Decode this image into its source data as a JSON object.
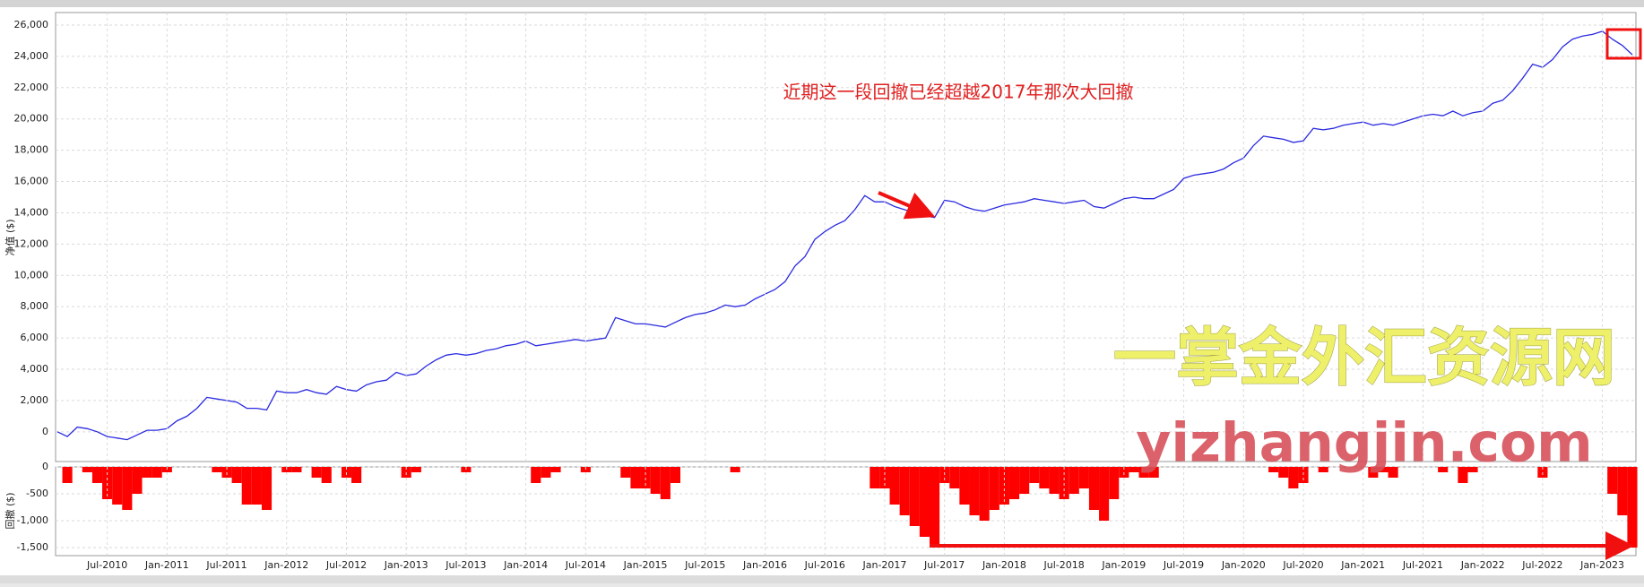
{
  "chart_data": [
    {
      "type": "line",
      "y_label": "净值 ($)",
      "annotation": "近期这一段回撤已经超越2017年那次大回撤",
      "watermark": "一掌金外汇资源网",
      "watermark_url": "yizhangjin.com",
      "x": [
        "Feb-2010",
        "Mar-2010",
        "Apr-2010",
        "May-2010",
        "Jun-2010",
        "Jul-2010",
        "Aug-2010",
        "Sep-2010",
        "Oct-2010",
        "Nov-2010",
        "Dec-2010",
        "Jan-2011",
        "Feb-2011",
        "Mar-2011",
        "Apr-2011",
        "May-2011",
        "Jun-2011",
        "Jul-2011",
        "Aug-2011",
        "Sep-2011",
        "Oct-2011",
        "Nov-2011",
        "Dec-2011",
        "Jan-2012",
        "Feb-2012",
        "Mar-2012",
        "Apr-2012",
        "May-2012",
        "Jun-2012",
        "Jul-2012",
        "Aug-2012",
        "Sep-2012",
        "Oct-2012",
        "Nov-2012",
        "Dec-2012",
        "Jan-2013",
        "Feb-2013",
        "Mar-2013",
        "Apr-2013",
        "May-2013",
        "Jun-2013",
        "Jul-2013",
        "Aug-2013",
        "Sep-2013",
        "Oct-2013",
        "Nov-2013",
        "Dec-2013",
        "Jan-2014",
        "Feb-2014",
        "Mar-2014",
        "Apr-2014",
        "May-2014",
        "Jun-2014",
        "Jul-2014",
        "Aug-2014",
        "Sep-2014",
        "Oct-2014",
        "Nov-2014",
        "Dec-2014",
        "Jan-2015",
        "Feb-2015",
        "Mar-2015",
        "Apr-2015",
        "May-2015",
        "Jun-2015",
        "Jul-2015",
        "Aug-2015",
        "Sep-2015",
        "Oct-2015",
        "Nov-2015",
        "Dec-2015",
        "Jan-2016",
        "Feb-2016",
        "Mar-2016",
        "Apr-2016",
        "May-2016",
        "Jun-2016",
        "Jul-2016",
        "Aug-2016",
        "Sep-2016",
        "Oct-2016",
        "Nov-2016",
        "Dec-2016",
        "Jan-2017",
        "Feb-2017",
        "Mar-2017",
        "Apr-2017",
        "May-2017",
        "Jun-2017",
        "Jul-2017",
        "Aug-2017",
        "Sep-2017",
        "Oct-2017",
        "Nov-2017",
        "Dec-2017",
        "Jan-2018",
        "Feb-2018",
        "Mar-2018",
        "Apr-2018",
        "May-2018",
        "Jun-2018",
        "Jul-2018",
        "Aug-2018",
        "Sep-2018",
        "Oct-2018",
        "Nov-2018",
        "Dec-2018",
        "Jan-2019",
        "Feb-2019",
        "Mar-2019",
        "Apr-2019",
        "May-2019",
        "Jun-2019",
        "Jul-2019",
        "Aug-2019",
        "Sep-2019",
        "Oct-2019",
        "Nov-2019",
        "Dec-2019",
        "Jan-2020",
        "Feb-2020",
        "Mar-2020",
        "Apr-2020",
        "May-2020",
        "Jun-2020",
        "Jul-2020",
        "Aug-2020",
        "Sep-2020",
        "Oct-2020",
        "Nov-2020",
        "Dec-2020",
        "Jan-2021",
        "Feb-2021",
        "Mar-2021",
        "Apr-2021",
        "May-2021",
        "Jun-2021",
        "Jul-2021",
        "Aug-2021",
        "Sep-2021",
        "Oct-2021",
        "Nov-2021",
        "Dec-2021",
        "Jan-2022",
        "Feb-2022",
        "Mar-2022",
        "Apr-2022",
        "May-2022",
        "Jun-2022",
        "Jul-2022",
        "Aug-2022",
        "Sep-2022",
        "Oct-2022",
        "Nov-2022",
        "Dec-2022",
        "Jan-2023",
        "Feb-2023",
        "Mar-2023",
        "Apr-2023"
      ],
      "series": [
        {
          "color": "#2b2be0",
          "values": [
            0,
            -300,
            300,
            200,
            0,
            -300,
            -400,
            -500,
            -200,
            100,
            100,
            200,
            700,
            1000,
            1500,
            2200,
            2100,
            2000,
            1900,
            1500,
            1500,
            1400,
            2600,
            2500,
            2500,
            2700,
            2500,
            2400,
            2900,
            2700,
            2600,
            3000,
            3200,
            3300,
            3800,
            3600,
            3700,
            4200,
            4600,
            4900,
            5000,
            4900,
            5000,
            5200,
            5300,
            5500,
            5600,
            5800,
            5500,
            5600,
            5700,
            5800,
            5900,
            5800,
            5900,
            6000,
            7300,
            7100,
            6900,
            6900,
            6800,
            6700,
            7000,
            7300,
            7500,
            7600,
            7800,
            8100,
            8000,
            8100,
            8500,
            8800,
            9100,
            9600,
            10600,
            11200,
            12300,
            12800,
            13200,
            13500,
            14200,
            15100,
            14700,
            14700,
            14400,
            14200,
            14000,
            13800,
            13700,
            14800,
            14700,
            14400,
            14200,
            14100,
            14300,
            14500,
            14600,
            14700,
            14900,
            14800,
            14700,
            14600,
            14700,
            14800,
            14400,
            14300,
            14600,
            14900,
            15000,
            14900,
            14900,
            15200,
            15500,
            16200,
            16400,
            16500,
            16600,
            16800,
            17200,
            17500,
            18300,
            18900,
            18800,
            18700,
            18500,
            18600,
            19400,
            19300,
            19400,
            19600,
            19700,
            19800,
            19600,
            19700,
            19600,
            19800,
            20000,
            20200,
            20300,
            20200,
            20500,
            20200,
            20400,
            20500,
            21000,
            21200,
            21800,
            22600,
            23500,
            23300,
            23800,
            24600,
            25100,
            25300,
            25400,
            25600,
            25100,
            24700,
            24100
          ]
        }
      ],
      "ylim": [
        -1900,
        26800
      ],
      "yticks": [
        0,
        {
          "value": 2000,
          "label": "2,000"
        },
        {
          "value": 4000,
          "label": "4,000"
        },
        {
          "value": 6000,
          "label": "6,000"
        },
        {
          "value": 8000,
          "label": "8,000"
        },
        {
          "value": 10000,
          "label": "10,000"
        },
        {
          "value": 12000,
          "label": "12,000"
        },
        {
          "value": 14000,
          "label": "14,000"
        },
        {
          "value": 16000,
          "label": "16,000"
        },
        {
          "value": 18000,
          "label": "18,000"
        },
        {
          "value": 20000,
          "label": "20,000"
        },
        {
          "value": 22000,
          "label": "22,000"
        },
        {
          "value": 24000,
          "label": "24,000"
        },
        {
          "value": 26000,
          "label": "26,000"
        }
      ],
      "grid": true
    },
    {
      "type": "bar",
      "y_label": "回撤 ($)",
      "xticks": [
        "Jul-2010",
        "Jan-2011",
        "Jul-2011",
        "Jan-2012",
        "Jul-2012",
        "Jan-2013",
        "Jul-2013",
        "Jan-2014",
        "Jul-2014",
        "Jan-2015",
        "Jul-2015",
        "Jan-2016",
        "Jul-2016",
        "Jan-2017",
        "Jul-2017",
        "Jan-2018",
        "Jul-2018",
        "Jan-2019",
        "Jul-2019",
        "Jan-2020",
        "Jul-2020",
        "Jan-2021",
        "Jul-2021",
        "Jan-2022",
        "Jul-2022",
        "Jan-2023"
      ],
      "color": "#ff0000",
      "values": [
        0,
        -300,
        0,
        -100,
        -300,
        -600,
        -700,
        -800,
        -500,
        -200,
        -200,
        -100,
        0,
        0,
        0,
        0,
        -100,
        -200,
        -300,
        -700,
        -700,
        -800,
        0,
        -100,
        -100,
        0,
        -200,
        -300,
        0,
        -200,
        -300,
        0,
        0,
        0,
        0,
        -200,
        -100,
        0,
        0,
        0,
        0,
        -100,
        0,
        0,
        0,
        0,
        0,
        0,
        -300,
        -200,
        -100,
        0,
        0,
        -100,
        0,
        0,
        0,
        -200,
        -400,
        -400,
        -500,
        -600,
        -300,
        0,
        0,
        0,
        0,
        0,
        -100,
        0,
        0,
        0,
        0,
        0,
        0,
        0,
        0,
        0,
        0,
        0,
        0,
        0,
        -400,
        -400,
        -700,
        -900,
        -1100,
        -1300,
        -1500,
        -300,
        -400,
        -700,
        -900,
        -1000,
        -800,
        -700,
        -600,
        -500,
        -300,
        -400,
        -500,
        -600,
        -500,
        -400,
        -800,
        -1000,
        -600,
        -200,
        -100,
        -200,
        -200,
        0,
        0,
        0,
        0,
        0,
        0,
        0,
        0,
        0,
        0,
        0,
        -100,
        -200,
        -400,
        -300,
        0,
        -100,
        0,
        0,
        0,
        0,
        -200,
        -100,
        -200,
        0,
        0,
        0,
        0,
        -100,
        0,
        -300,
        -100,
        0,
        0,
        0,
        0,
        0,
        0,
        -200,
        0,
        0,
        0,
        0,
        0,
        0,
        -500,
        -900,
        -1500
      ],
      "ylim": [
        -1650,
        0
      ],
      "yticks": [
        0,
        {
          "value": -500,
          "label": "-500"
        },
        {
          "value": -1000,
          "label": "-1,000"
        },
        {
          "value": -1500,
          "label": "-1,500"
        }
      ],
      "grid": true
    }
  ]
}
